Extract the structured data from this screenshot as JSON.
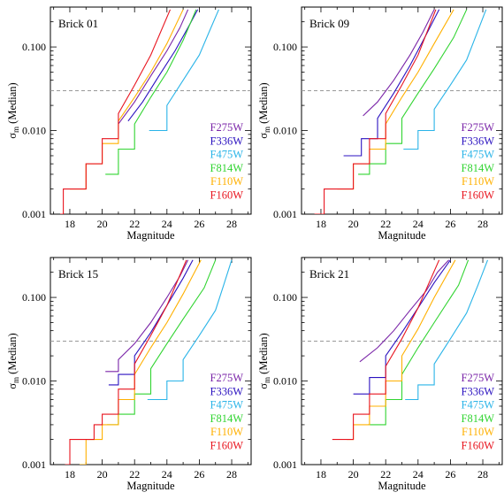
{
  "figure": {
    "xlabel": "Magnitude",
    "ylabel_main": "σ",
    "ylabel_sub": "m",
    "ylabel_rest": " (Median)"
  },
  "chart_data": [
    {
      "type": "line",
      "title": "Brick 01",
      "xlim": [
        16.8,
        29.2
      ],
      "ylim": [
        0.001,
        0.3
      ],
      "yscale": "log",
      "xticks": [
        18,
        20,
        22,
        24,
        26,
        28
      ],
      "yticks": [
        0.001,
        0.01,
        0.1
      ],
      "ytick_labels": [
        "0.001",
        "0.010",
        "0.100"
      ],
      "reference_line": {
        "y": 0.03,
        "style": "dashed",
        "color": "#999999"
      },
      "legend_position": "right",
      "series": [
        {
          "name": "F275W",
          "color": "#7a25a8",
          "x": [
            21.0,
            22.0,
            23.0,
            24.0,
            24.8,
            25.3
          ],
          "y": [
            0.012,
            0.022,
            0.045,
            0.09,
            0.17,
            0.28
          ]
        },
        {
          "name": "F336W",
          "color": "#2b12c0",
          "x": [
            21.6,
            22.5,
            23.5,
            24.5,
            25.3,
            25.9
          ],
          "y": [
            0.013,
            0.022,
            0.045,
            0.09,
            0.17,
            0.28
          ]
        },
        {
          "name": "F475W",
          "color": "#2ab4e8",
          "x": [
            22.9,
            24.0,
            25.0,
            26.0,
            26.6,
            27.2
          ],
          "y": [
            0.01,
            0.02,
            0.04,
            0.08,
            0.15,
            0.28
          ]
        },
        {
          "name": "F814W",
          "color": "#31d431",
          "x": [
            20.2,
            21.0,
            22.0,
            23.0,
            24.0,
            25.0,
            25.8
          ],
          "y": [
            0.003,
            0.006,
            0.012,
            0.025,
            0.05,
            0.12,
            0.28
          ]
        },
        {
          "name": "F110W",
          "color": "#ffb000",
          "x": [
            18.0,
            19.0,
            20.0,
            21.0,
            22.0,
            23.0,
            24.0,
            25.0
          ],
          "y": [
            0.002,
            0.004,
            0.007,
            0.013,
            0.025,
            0.05,
            0.11,
            0.28
          ]
        },
        {
          "name": "F160W",
          "color": "#e8141e",
          "x": [
            17.4,
            17.6,
            18.5,
            19.0,
            20.0,
            21.0,
            22.0,
            23.0,
            24.2
          ],
          "y": [
            0.001,
            0.002,
            0.002,
            0.004,
            0.008,
            0.016,
            0.035,
            0.08,
            0.28
          ]
        }
      ]
    },
    {
      "type": "line",
      "title": "Brick 09",
      "xlim": [
        16.8,
        29.2
      ],
      "ylim": [
        0.001,
        0.3
      ],
      "yscale": "log",
      "xticks": [
        18,
        20,
        22,
        24,
        26,
        28
      ],
      "yticks": [
        0.001,
        0.01,
        0.1
      ],
      "ytick_labels": [
        "0.001",
        "0.010",
        "0.100"
      ],
      "reference_line": {
        "y": 0.03,
        "style": "dashed",
        "color": "#999999"
      },
      "legend_position": "right",
      "series": [
        {
          "name": "F275W",
          "color": "#7a25a8",
          "x": [
            20.6,
            21.5,
            22.5,
            23.5,
            24.3,
            25.0
          ],
          "y": [
            0.015,
            0.022,
            0.04,
            0.08,
            0.15,
            0.28
          ]
        },
        {
          "name": "F336W",
          "color": "#2b12c0",
          "x": [
            19.4,
            20.5,
            21.5,
            22.5,
            23.5,
            24.5,
            25.3
          ],
          "y": [
            0.005,
            0.008,
            0.014,
            0.028,
            0.06,
            0.14,
            0.28
          ]
        },
        {
          "name": "F475W",
          "color": "#2ab4e8",
          "x": [
            23.1,
            24.0,
            25.0,
            26.0,
            27.0,
            27.6,
            28.2
          ],
          "y": [
            0.006,
            0.01,
            0.018,
            0.035,
            0.07,
            0.14,
            0.28
          ]
        },
        {
          "name": "F814W",
          "color": "#31d431",
          "x": [
            20.3,
            21.0,
            22.0,
            23.0,
            24.0,
            25.0,
            26.2,
            27.0
          ],
          "y": [
            0.003,
            0.004,
            0.007,
            0.014,
            0.028,
            0.055,
            0.13,
            0.28
          ]
        },
        {
          "name": "F110W",
          "color": "#ffb000",
          "x": [
            19.0,
            20.0,
            21.0,
            22.0,
            23.0,
            24.0,
            25.0,
            26.2
          ],
          "y": [
            0.002,
            0.004,
            0.006,
            0.012,
            0.025,
            0.05,
            0.11,
            0.28
          ]
        },
        {
          "name": "F160W",
          "color": "#e8141e",
          "x": [
            17.6,
            18.2,
            19.0,
            20.0,
            21.0,
            22.0,
            23.0,
            24.0,
            25.1
          ],
          "y": [
            0.001,
            0.002,
            0.002,
            0.004,
            0.008,
            0.016,
            0.035,
            0.08,
            0.28
          ]
        }
      ]
    },
    {
      "type": "line",
      "title": "Brick 15",
      "xlim": [
        16.8,
        29.2
      ],
      "ylim": [
        0.001,
        0.3
      ],
      "yscale": "log",
      "xticks": [
        18,
        20,
        22,
        24,
        26,
        28
      ],
      "yticks": [
        0.001,
        0.01,
        0.1
      ],
      "ytick_labels": [
        "0.001",
        "0.010",
        "0.100"
      ],
      "reference_line": {
        "y": 0.03,
        "style": "dashed",
        "color": "#999999"
      },
      "legend_position": "right",
      "series": [
        {
          "name": "F275W",
          "color": "#7a25a8",
          "x": [
            20.2,
            21.0,
            22.0,
            23.0,
            24.0,
            24.8,
            25.3
          ],
          "y": [
            0.013,
            0.018,
            0.028,
            0.05,
            0.1,
            0.18,
            0.28
          ]
        },
        {
          "name": "F336W",
          "color": "#2b12c0",
          "x": [
            20.4,
            21.0,
            22.0,
            23.0,
            24.0,
            25.0,
            25.6
          ],
          "y": [
            0.009,
            0.012,
            0.02,
            0.038,
            0.08,
            0.17,
            0.28
          ]
        },
        {
          "name": "F475W",
          "color": "#2ab4e8",
          "x": [
            22.8,
            24.0,
            25.0,
            26.0,
            27.0,
            27.5,
            28.0
          ],
          "y": [
            0.006,
            0.01,
            0.018,
            0.035,
            0.07,
            0.14,
            0.28
          ]
        },
        {
          "name": "F814W",
          "color": "#31d431",
          "x": [
            20.3,
            21.0,
            22.0,
            23.0,
            24.0,
            25.0,
            26.3,
            27.0
          ],
          "y": [
            0.003,
            0.004,
            0.007,
            0.014,
            0.028,
            0.055,
            0.13,
            0.28
          ]
        },
        {
          "name": "F110W",
          "color": "#ffb000",
          "x": [
            18.6,
            19.0,
            20.0,
            21.0,
            22.0,
            23.0,
            24.0,
            25.0,
            26.1
          ],
          "y": [
            0.001,
            0.002,
            0.003,
            0.006,
            0.012,
            0.025,
            0.05,
            0.11,
            0.28
          ]
        },
        {
          "name": "F160W",
          "color": "#e8141e",
          "x": [
            17.7,
            18.0,
            18.8,
            19.5,
            20.0,
            21.0,
            22.0,
            23.0,
            24.0,
            25.2
          ],
          "y": [
            0.001,
            0.002,
            0.002,
            0.003,
            0.004,
            0.008,
            0.016,
            0.035,
            0.08,
            0.28
          ]
        }
      ]
    },
    {
      "type": "line",
      "title": "Brick 21",
      "xlim": [
        16.8,
        29.2
      ],
      "ylim": [
        0.001,
        0.3
      ],
      "yscale": "log",
      "xticks": [
        18,
        20,
        22,
        24,
        26,
        28
      ],
      "yticks": [
        0.001,
        0.01,
        0.1
      ],
      "ytick_labels": [
        "0.001",
        "0.010",
        "0.100"
      ],
      "reference_line": {
        "y": 0.03,
        "style": "dashed",
        "color": "#999999"
      },
      "legend_position": "right",
      "series": [
        {
          "name": "F275W",
          "color": "#7a25a8",
          "x": [
            20.4,
            21.5,
            22.5,
            23.5,
            24.5,
            25.2,
            25.9
          ],
          "y": [
            0.017,
            0.025,
            0.04,
            0.07,
            0.12,
            0.2,
            0.28
          ]
        },
        {
          "name": "F336W",
          "color": "#2b12c0",
          "x": [
            20.0,
            21.0,
            22.0,
            23.0,
            24.0,
            25.0,
            26.0
          ],
          "y": [
            0.007,
            0.011,
            0.02,
            0.038,
            0.075,
            0.15,
            0.28
          ]
        },
        {
          "name": "F475W",
          "color": "#2ab4e8",
          "x": [
            23.2,
            24.0,
            25.0,
            26.0,
            27.0,
            27.7,
            28.3
          ],
          "y": [
            0.006,
            0.009,
            0.016,
            0.032,
            0.065,
            0.14,
            0.28
          ]
        },
        {
          "name": "F814W",
          "color": "#31d431",
          "x": [
            20.9,
            22.0,
            23.0,
            24.0,
            25.0,
            26.5,
            27.1
          ],
          "y": [
            0.003,
            0.006,
            0.012,
            0.025,
            0.05,
            0.14,
            0.28
          ]
        },
        {
          "name": "F110W",
          "color": "#ffb000",
          "x": [
            19.6,
            20.0,
            21.0,
            22.0,
            23.0,
            24.0,
            25.0,
            26.3
          ],
          "y": [
            0.002,
            0.003,
            0.005,
            0.01,
            0.02,
            0.042,
            0.1,
            0.28
          ]
        },
        {
          "name": "F160W",
          "color": "#e8141e",
          "x": [
            18.7,
            19.0,
            20.0,
            21.0,
            22.0,
            23.0,
            24.0,
            25.3
          ],
          "y": [
            0.002,
            0.002,
            0.004,
            0.007,
            0.015,
            0.032,
            0.075,
            0.28
          ]
        }
      ]
    }
  ]
}
